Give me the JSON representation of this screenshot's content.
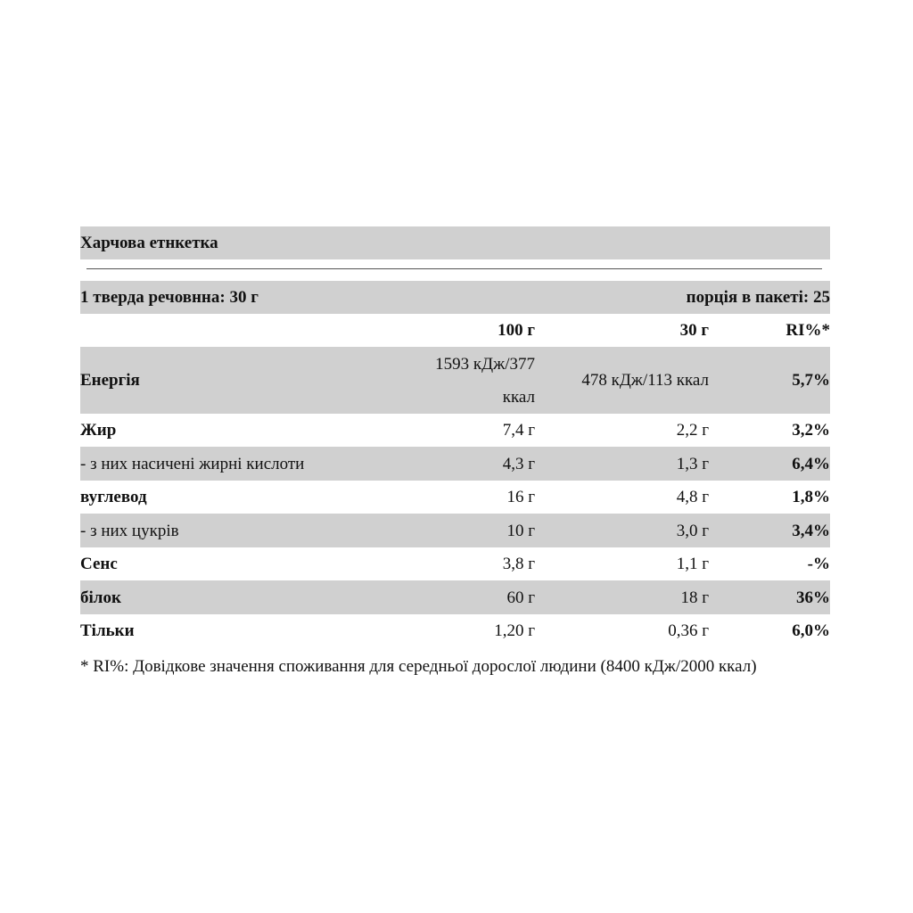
{
  "title": "Харчова етнкетка",
  "serving": {
    "left": "1 тверда речовнна: 30 г",
    "right": "порція в пакеті: 25"
  },
  "table": {
    "header": [
      "100 г",
      "30 г",
      "RI%*"
    ],
    "rows": [
      [
        "Енергія",
        "1593 кДж/377 ккал",
        "478 кДж/113 ккал",
        "5,7%"
      ],
      [
        "Жир",
        "7,4 г",
        "2,2 г",
        "3,2%"
      ],
      [
        "- з них насичені жирні кислоти",
        "4,3 г",
        "1,3 г",
        "6,4%"
      ],
      [
        "вуглевод",
        "16 г",
        "4,8 г",
        "1,8%"
      ],
      [
        "- з них цукрів",
        "10 г",
        "3,0 г",
        "3,4%"
      ],
      [
        "Сенс",
        "3,8 г",
        "1,1 г",
        "-%"
      ],
      [
        "білок",
        "60 г",
        "18 г",
        "36%"
      ],
      [
        "Тільки",
        "1,20 г",
        "0,36 г",
        "6,0%"
      ]
    ]
  },
  "footnote": "* RI%: Довідкове значення споживання для середньої дорослої людини (8400 кДж/2000 ккал)"
}
